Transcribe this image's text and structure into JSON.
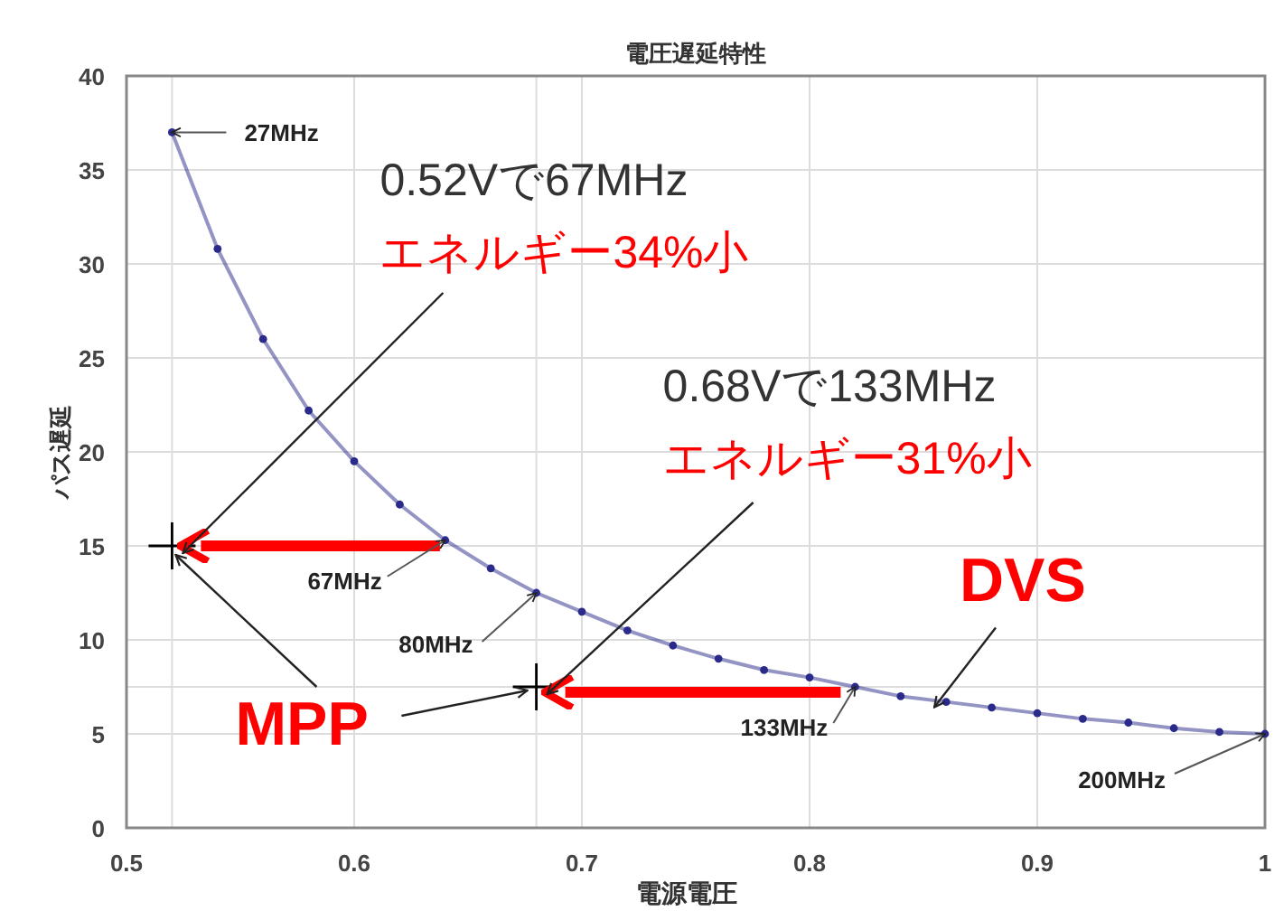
{
  "chart_data": {
    "type": "line",
    "title": "電圧遅延特性",
    "xlabel": "電源電圧",
    "ylabel": "パス遅延",
    "xlim": [
      0.5,
      1
    ],
    "xticks": [
      0.5,
      0.6,
      0.7,
      0.8,
      0.9,
      1
    ],
    "ylim": [
      0,
      40
    ],
    "yticks": [
      0,
      5,
      10,
      15,
      20,
      25,
      30,
      35,
      40
    ],
    "grid": true,
    "series": [
      {
        "type": "line",
        "marker": "circle",
        "color": "#2a2a8a",
        "x": [
          0.52,
          0.54,
          0.56,
          0.58,
          0.6,
          0.62,
          0.64,
          0.66,
          0.68,
          0.7,
          0.72,
          0.74,
          0.76,
          0.78,
          0.8,
          0.82,
          0.84,
          0.86,
          0.88,
          0.9,
          0.92,
          0.94,
          0.96,
          0.98,
          1.0
        ],
        "values": [
          37,
          30.8,
          26,
          22.2,
          19.5,
          17.2,
          15.3,
          13.8,
          12.5,
          11.5,
          10.5,
          9.7,
          9,
          8.4,
          8,
          7.5,
          7,
          6.7,
          6.4,
          6.1,
          5.8,
          5.6,
          5.3,
          5.1,
          5
        ]
      },
      {
        "type": "scatter",
        "marker": "cross",
        "color": "#000000",
        "x": [
          0.52,
          0.68
        ],
        "values": [
          15,
          7.5
        ]
      }
    ],
    "ref_lines": [
      {
        "axis": "x",
        "value": 0.52,
        "color": "#dddddd"
      },
      {
        "axis": "x",
        "value": 0.68,
        "color": "#dddddd"
      },
      {
        "axis": "y",
        "value": 7.5,
        "color": "#dddddd"
      }
    ],
    "annotations": [
      {
        "text": "27MHz",
        "x": 0.52,
        "y": 37
      },
      {
        "text": "67MHz",
        "x": 0.64,
        "y": 15.3
      },
      {
        "text": "80MHz",
        "x": 0.68,
        "y": 12.5
      },
      {
        "text": "133MHz",
        "x": 0.82,
        "y": 7.5
      },
      {
        "text": "200MHz",
        "x": 1.0,
        "y": 5
      },
      "0.52Vで67MHz",
      {
        "text": "エネルギー34%小",
        "x": 0.52,
        "y": 15
      },
      "0.68Vで133MHz",
      {
        "text": "エネルギー31%小",
        "x": 0.68,
        "y": 7.5
      },
      {
        "text": "MPP",
        "x": 0.52,
        "y": 15
      },
      {
        "text": "DVS",
        "x": 0.85,
        "y": 6.8
      }
    ]
  }
}
